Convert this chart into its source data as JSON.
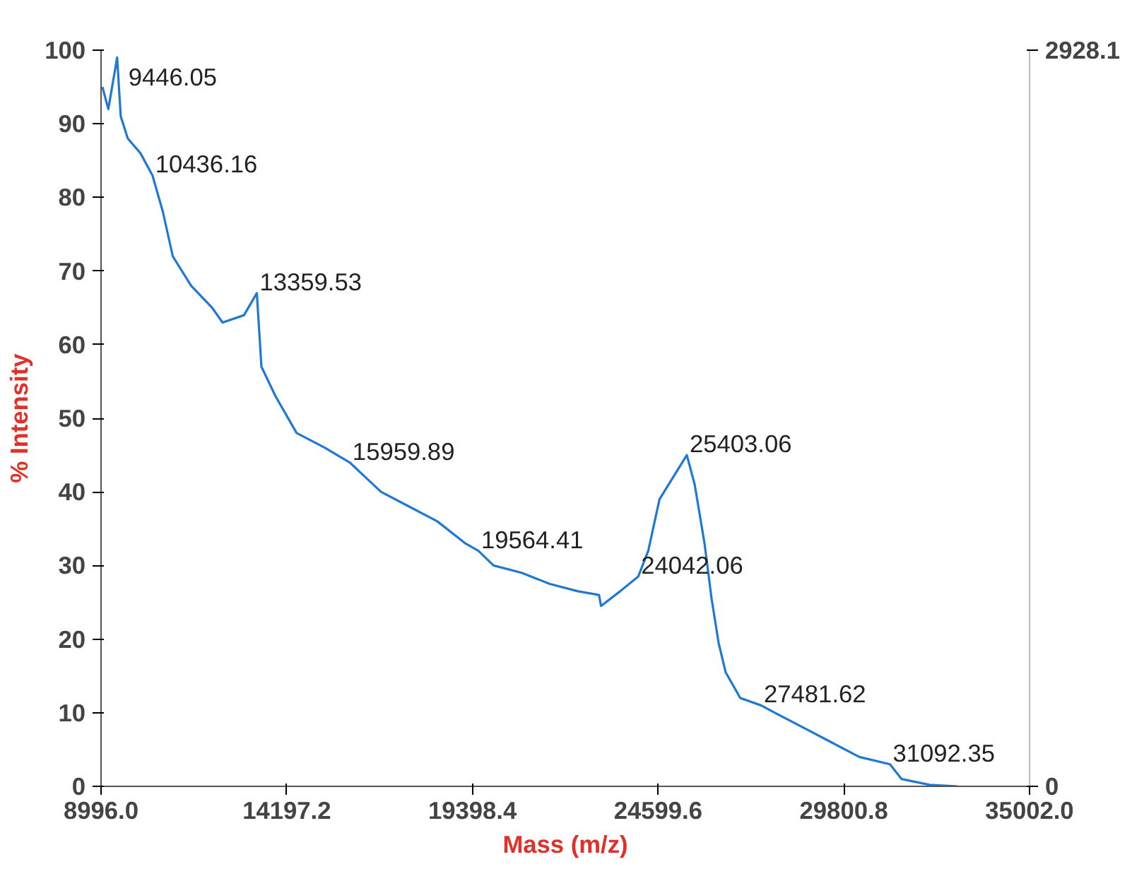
{
  "chart_data": {
    "type": "line",
    "xlabel": "Mass (m/z)",
    "ylabel": "% Intensity",
    "xlim": [
      8996.0,
      35002.0
    ],
    "xticks": [
      {
        "value": 8996.0,
        "label": "8996.0"
      },
      {
        "value": 14197.2,
        "label": "14197.2"
      },
      {
        "value": 19398.4,
        "label": "19398.4"
      },
      {
        "value": 24599.6,
        "label": "24599.6"
      },
      {
        "value": 29800.8,
        "label": "29800.8"
      },
      {
        "value": 35002.0,
        "label": "35002.0"
      }
    ],
    "ylim": [
      0,
      100
    ],
    "yticks": [
      0,
      10,
      20,
      30,
      40,
      50,
      60,
      70,
      80,
      90,
      100
    ],
    "y2lim": [
      0,
      2928.1
    ],
    "y2ticks": [
      0,
      2928.1
    ],
    "grid": false,
    "marker": "none",
    "line_style": "solid",
    "series": [
      {
        "color": "#1f78d1",
        "x": [
          9035,
          9200,
          9446.05,
          9548,
          9745,
          10100,
          10436.16,
          10730,
          11005,
          11518,
          12109,
          12400,
          13000,
          13359.53,
          13488,
          13882,
          14473,
          15261,
          15959.89,
          16837,
          17625,
          18413,
          19201,
          19564.41,
          19989,
          20777,
          21565,
          22353,
          22944,
          23000,
          23535,
          24042.06,
          24323,
          24638,
          25403.06,
          25623,
          25899,
          26096,
          26293,
          26490,
          26900,
          27481.62,
          27868,
          28657,
          29445,
          30233,
          31092.35,
          31416,
          32204,
          32992
        ],
        "values": [
          95,
          92,
          99,
          91,
          88,
          86,
          83,
          78,
          72,
          68,
          65,
          63,
          64,
          67,
          57,
          53,
          48,
          46,
          44,
          40,
          38,
          36,
          33,
          32,
          30,
          29,
          27.5,
          26.5,
          26,
          24.5,
          26.5,
          28.5,
          32,
          39,
          45,
          41,
          33,
          25.5,
          19.5,
          15.5,
          12,
          11,
          10,
          8,
          6,
          4,
          3,
          1,
          0.2,
          0
        ]
      }
    ],
    "annotations": [
      {
        "text": "9446.05",
        "x": 9446.05,
        "y": 99
      },
      {
        "text": "10436.16",
        "x": 10436.16,
        "y": 83
      },
      {
        "text": "13359.53",
        "x": 13359.53,
        "y": 67
      },
      {
        "text": "15959.89",
        "x": 15959.89,
        "y": 44
      },
      {
        "text": "19564.41",
        "x": 19564.41,
        "y": 32
      },
      {
        "text": "24042.06",
        "x": 24042.06,
        "y": 28.5
      },
      {
        "text": "25403.06",
        "x": 25403.06,
        "y": 45
      },
      {
        "text": "27481.62",
        "x": 27481.62,
        "y": 11
      },
      {
        "text": "31092.35",
        "x": 31092.35,
        "y": 3
      }
    ]
  }
}
